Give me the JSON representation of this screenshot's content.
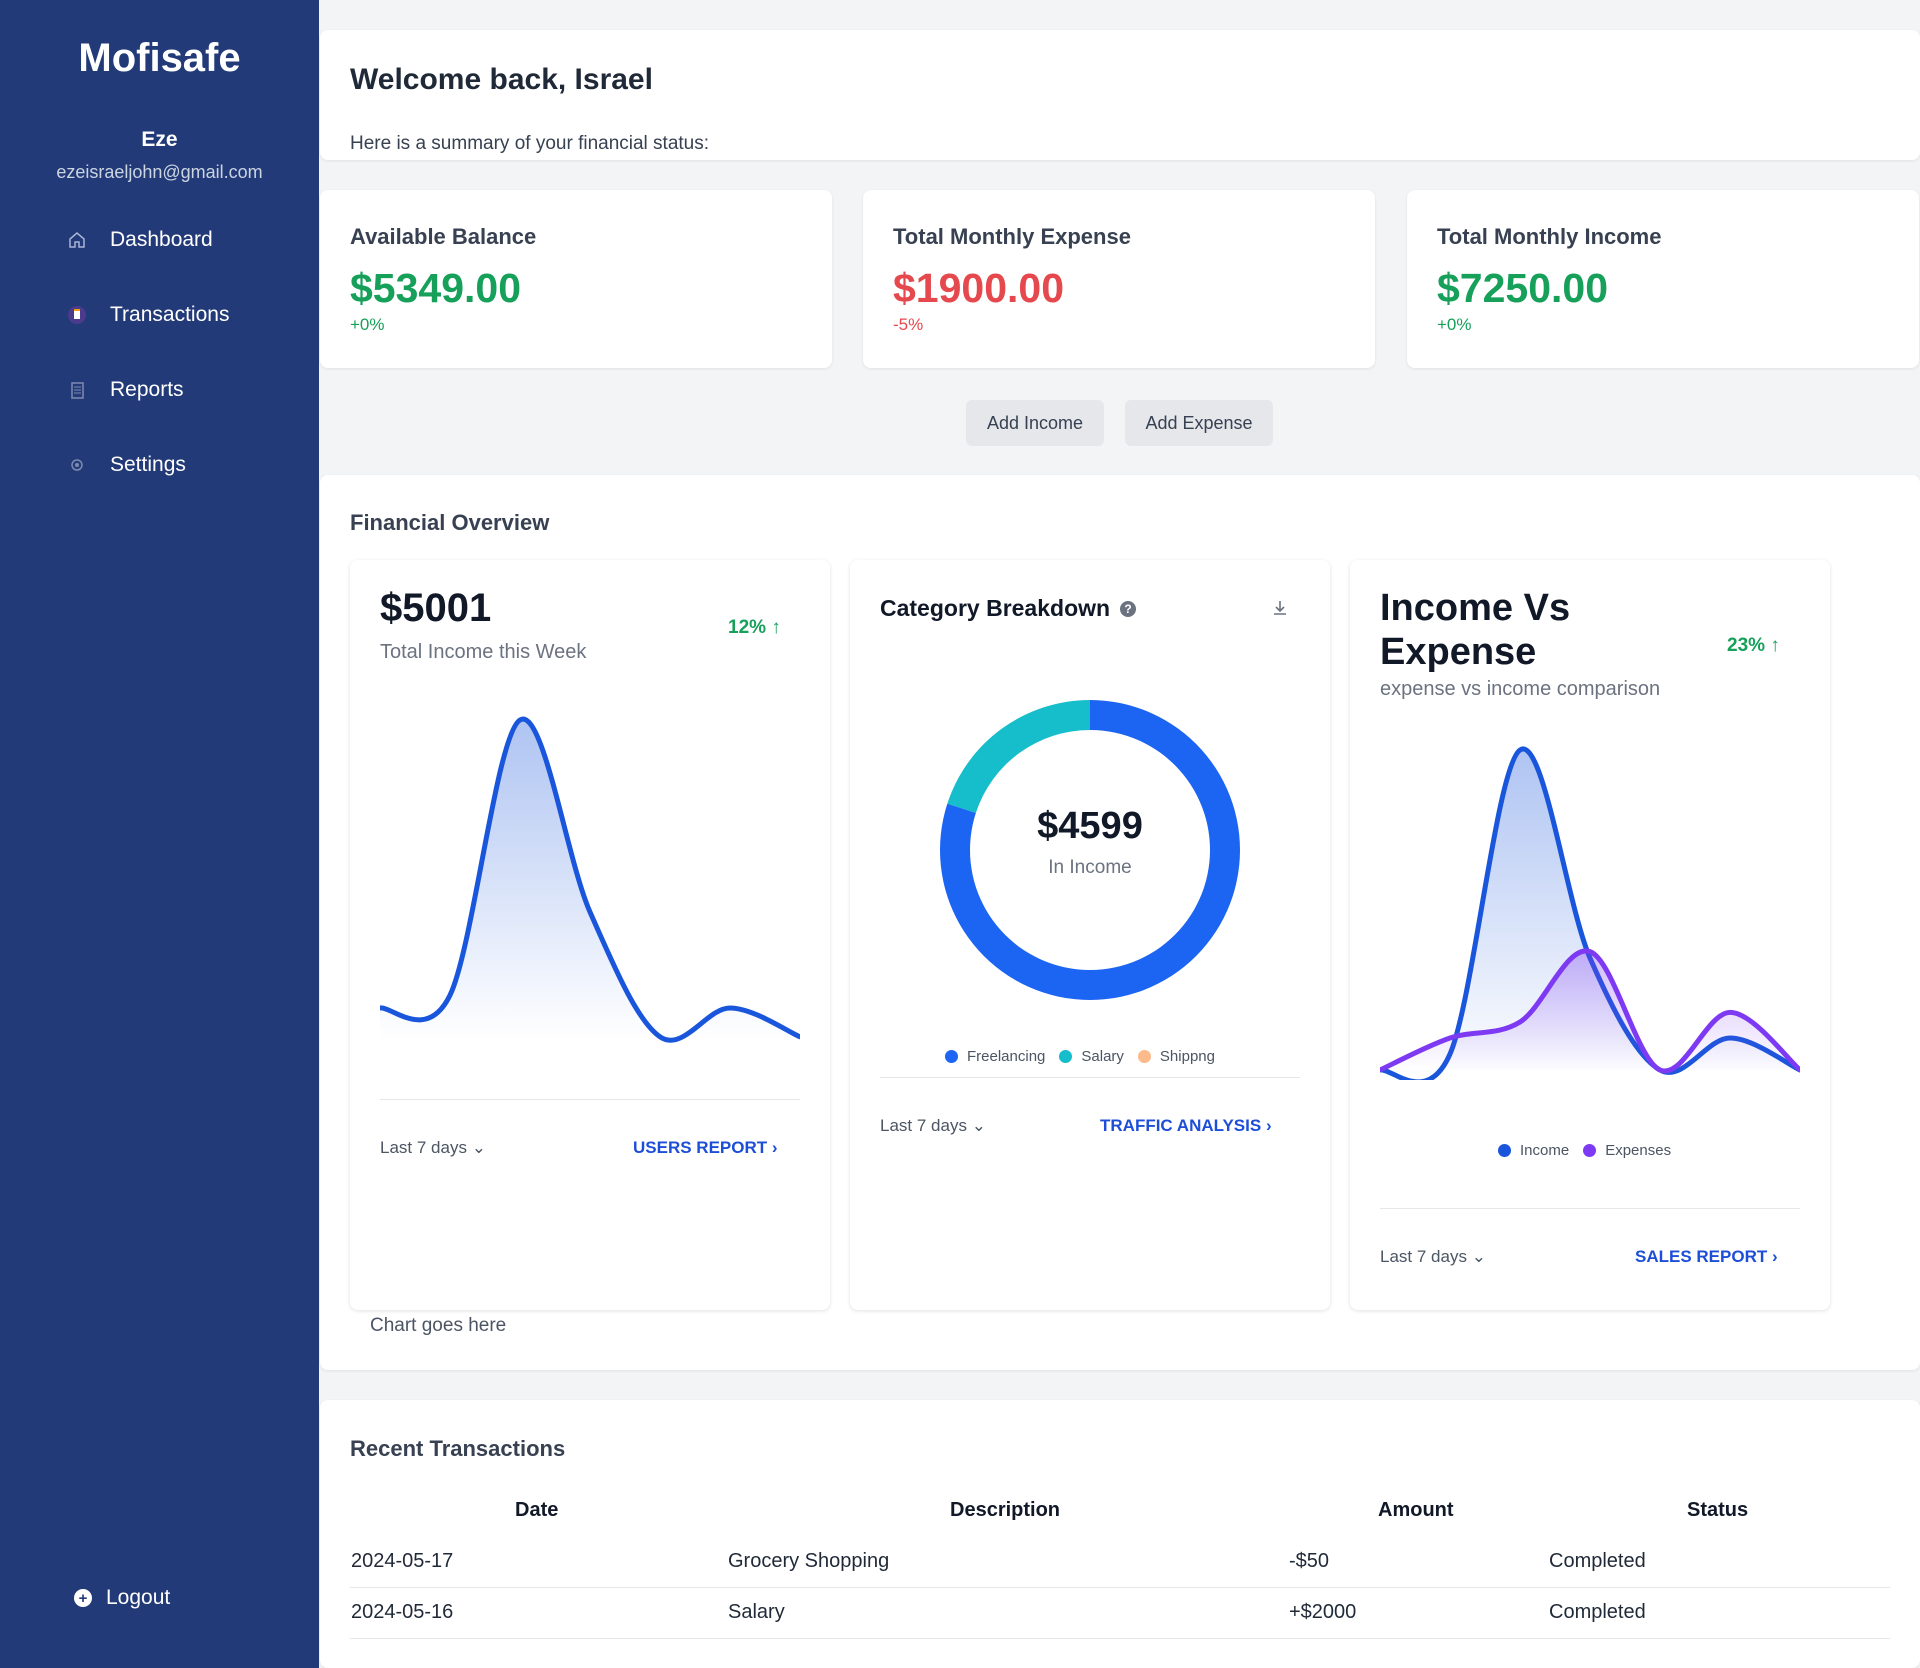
{
  "sidebar": {
    "brand": "Mofisafe",
    "user_name": "Eze",
    "user_email": "ezeisraeljohn@gmail.com",
    "nav": [
      {
        "label": "Dashboard",
        "icon": "home-icon"
      },
      {
        "label": "Transactions",
        "icon": "receipt-icon"
      },
      {
        "label": "Reports",
        "icon": "document-icon"
      },
      {
        "label": "Settings",
        "icon": "gear-icon"
      }
    ],
    "logout": "Logout"
  },
  "welcome": {
    "title": "Welcome back, Israel",
    "subtitle": "Here is a summary of your financial status:"
  },
  "stats": [
    {
      "label": "Available Balance",
      "value": "$5349.00",
      "change": "+0%",
      "color": "#16a05a"
    },
    {
      "label": "Total Monthly Expense",
      "value": "$1900.00",
      "change": "-5%",
      "color": "#e5484d"
    },
    {
      "label": "Total Monthly Income",
      "value": "$7250.00",
      "change": "+0%",
      "color": "#16a05a"
    }
  ],
  "actions": {
    "add_income": "Add Income",
    "add_expense": "Add Expense"
  },
  "overview": {
    "title": "Financial Overview",
    "chart_note": "Chart goes here",
    "income_card": {
      "value": "$5001",
      "subtitle": "Total Income this Week",
      "percent": "12%",
      "range": "Last 7 days",
      "link": "USERS REPORT"
    },
    "category_card": {
      "title": "Category Breakdown",
      "center_value": "$4599",
      "center_label": "In Income",
      "range": "Last 7 days",
      "link": "TRAFFIC ANALYSIS",
      "legend": [
        "Freelancing",
        "Salary",
        "Shippng"
      ]
    },
    "ive_card": {
      "title_line1": "Income Vs",
      "title_line2": "Expense",
      "subtitle": "expense vs income comparison",
      "percent": "23%",
      "range": "Last 7 days",
      "link": "SALES REPORT",
      "legend": [
        "Income",
        "Expenses"
      ]
    }
  },
  "chart_data": [
    {
      "type": "area",
      "series": [
        {
          "values": [
            10,
            14,
            100,
            40,
            1,
            10,
            1
          ]
        }
      ],
      "ylim": [
        0,
        100
      ]
    },
    {
      "type": "pie",
      "categories": [
        "Freelancing",
        "Salary",
        "Shippng"
      ],
      "values": [
        80,
        20,
        0
      ],
      "colors": [
        "#1c64f2",
        "#16bdca",
        "#fdba8c"
      ]
    },
    {
      "type": "area",
      "series": [
        {
          "name": "Income",
          "values": [
            0,
            5,
            100,
            35,
            0,
            10,
            0
          ]
        },
        {
          "name": "Expenses",
          "values": [
            0,
            10,
            15,
            37,
            0,
            18,
            0
          ]
        }
      ],
      "colors": [
        "#1a56db",
        "#7e3af2"
      ],
      "ylim": [
        0,
        100
      ]
    }
  ],
  "transactions": {
    "title": "Recent Transactions",
    "headers": [
      "Date",
      "Description",
      "Amount",
      "Status"
    ],
    "rows": [
      {
        "date": "2024-05-17",
        "description": "Grocery Shopping",
        "amount": "-$50",
        "status": "Completed"
      },
      {
        "date": "2024-05-16",
        "description": "Salary",
        "amount": "+$2000",
        "status": "Completed"
      }
    ]
  }
}
